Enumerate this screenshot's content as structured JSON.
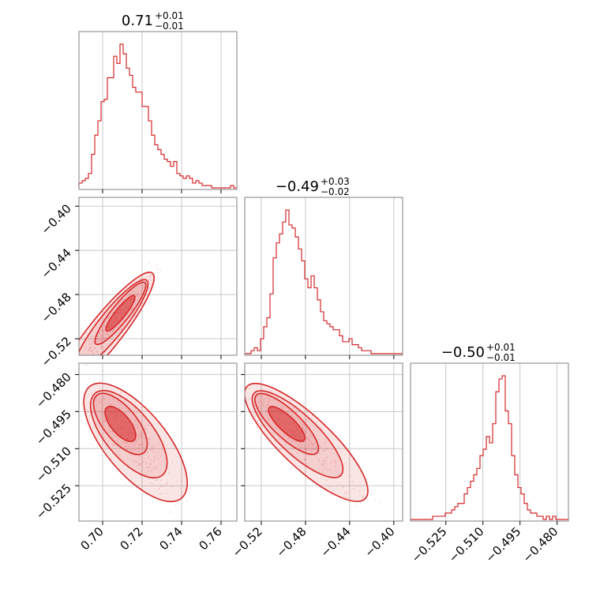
{
  "chart_data": {
    "type": "corner",
    "color": "#d62728",
    "grid": true,
    "parameters": [
      {
        "range": [
          0.688,
          0.768
        ],
        "ticks": [
          0.7,
          0.72,
          0.74,
          0.76
        ],
        "tick_labels": [
          "0.70",
          "0.72",
          "0.74",
          "0.76"
        ]
      },
      {
        "range": [
          -0.535,
          -0.392
        ],
        "ticks": [
          -0.52,
          -0.48,
          -0.44,
          -0.4
        ],
        "tick_labels": [
          "−0.52",
          "−0.48",
          "−0.44",
          "−0.40"
        ]
      },
      {
        "range": [
          -0.5393,
          -0.4754
        ],
        "ticks": [
          -0.525,
          -0.51,
          -0.495,
          -0.48
        ],
        "tick_labels": [
          "−0.525",
          "−0.510",
          "−0.495",
          "−0.480"
        ]
      }
    ],
    "titles": [
      {
        "base": "0.71",
        "upper": "+0.01",
        "lower": "−0.01"
      },
      {
        "base": "−0.49",
        "upper": "+0.03",
        "lower": "−0.02"
      },
      {
        "base": "−0.50",
        "upper": "+0.01",
        "lower": "−0.01"
      }
    ],
    "histograms": [
      {
        "edges": [
          0.688,
          0.768
        ],
        "counts": [
          2,
          3,
          4,
          6,
          14,
          22,
          28,
          36,
          37,
          46,
          46,
          55,
          52,
          60,
          56,
          50,
          47,
          42,
          40,
          40,
          34,
          34,
          28,
          22,
          18,
          16,
          14,
          12,
          11,
          9,
          11,
          6,
          5,
          4,
          5,
          4,
          2,
          3,
          2,
          1,
          1,
          1,
          0,
          0,
          0,
          0,
          0,
          0,
          1,
          0
        ]
      },
      {
        "edges": [
          -0.535,
          -0.392
        ],
        "counts": [
          0,
          0,
          1,
          2,
          1,
          5,
          9,
          12,
          20,
          32,
          37,
          40,
          44,
          48,
          43,
          42,
          39,
          35,
          31,
          25,
          22,
          26,
          22,
          18,
          14,
          11,
          10,
          9,
          8,
          8,
          6,
          4,
          4,
          5,
          3,
          3,
          2,
          1,
          1,
          1,
          0,
          0,
          0,
          0,
          0,
          0,
          0,
          0,
          0,
          0
        ]
      },
      {
        "edges": [
          -0.5393,
          -0.4754
        ],
        "counts": [
          0,
          0,
          0,
          0,
          0,
          0,
          0,
          1,
          1,
          1,
          1,
          2,
          2,
          3,
          4,
          5,
          5,
          8,
          10,
          12,
          14,
          16,
          20,
          22,
          26,
          24,
          30,
          40,
          44,
          45,
          34,
          30,
          20,
          14,
          10,
          8,
          5,
          3,
          2,
          2,
          1,
          1,
          0,
          1,
          0,
          1,
          0,
          0,
          0,
          0
        ]
      }
    ],
    "correlations": {
      "r_0_1": 0.96,
      "r_0_2": -0.85,
      "r_1_2": -0.92
    },
    "contour_levels": [
      0.118,
      0.393,
      0.675,
      0.864
    ]
  }
}
